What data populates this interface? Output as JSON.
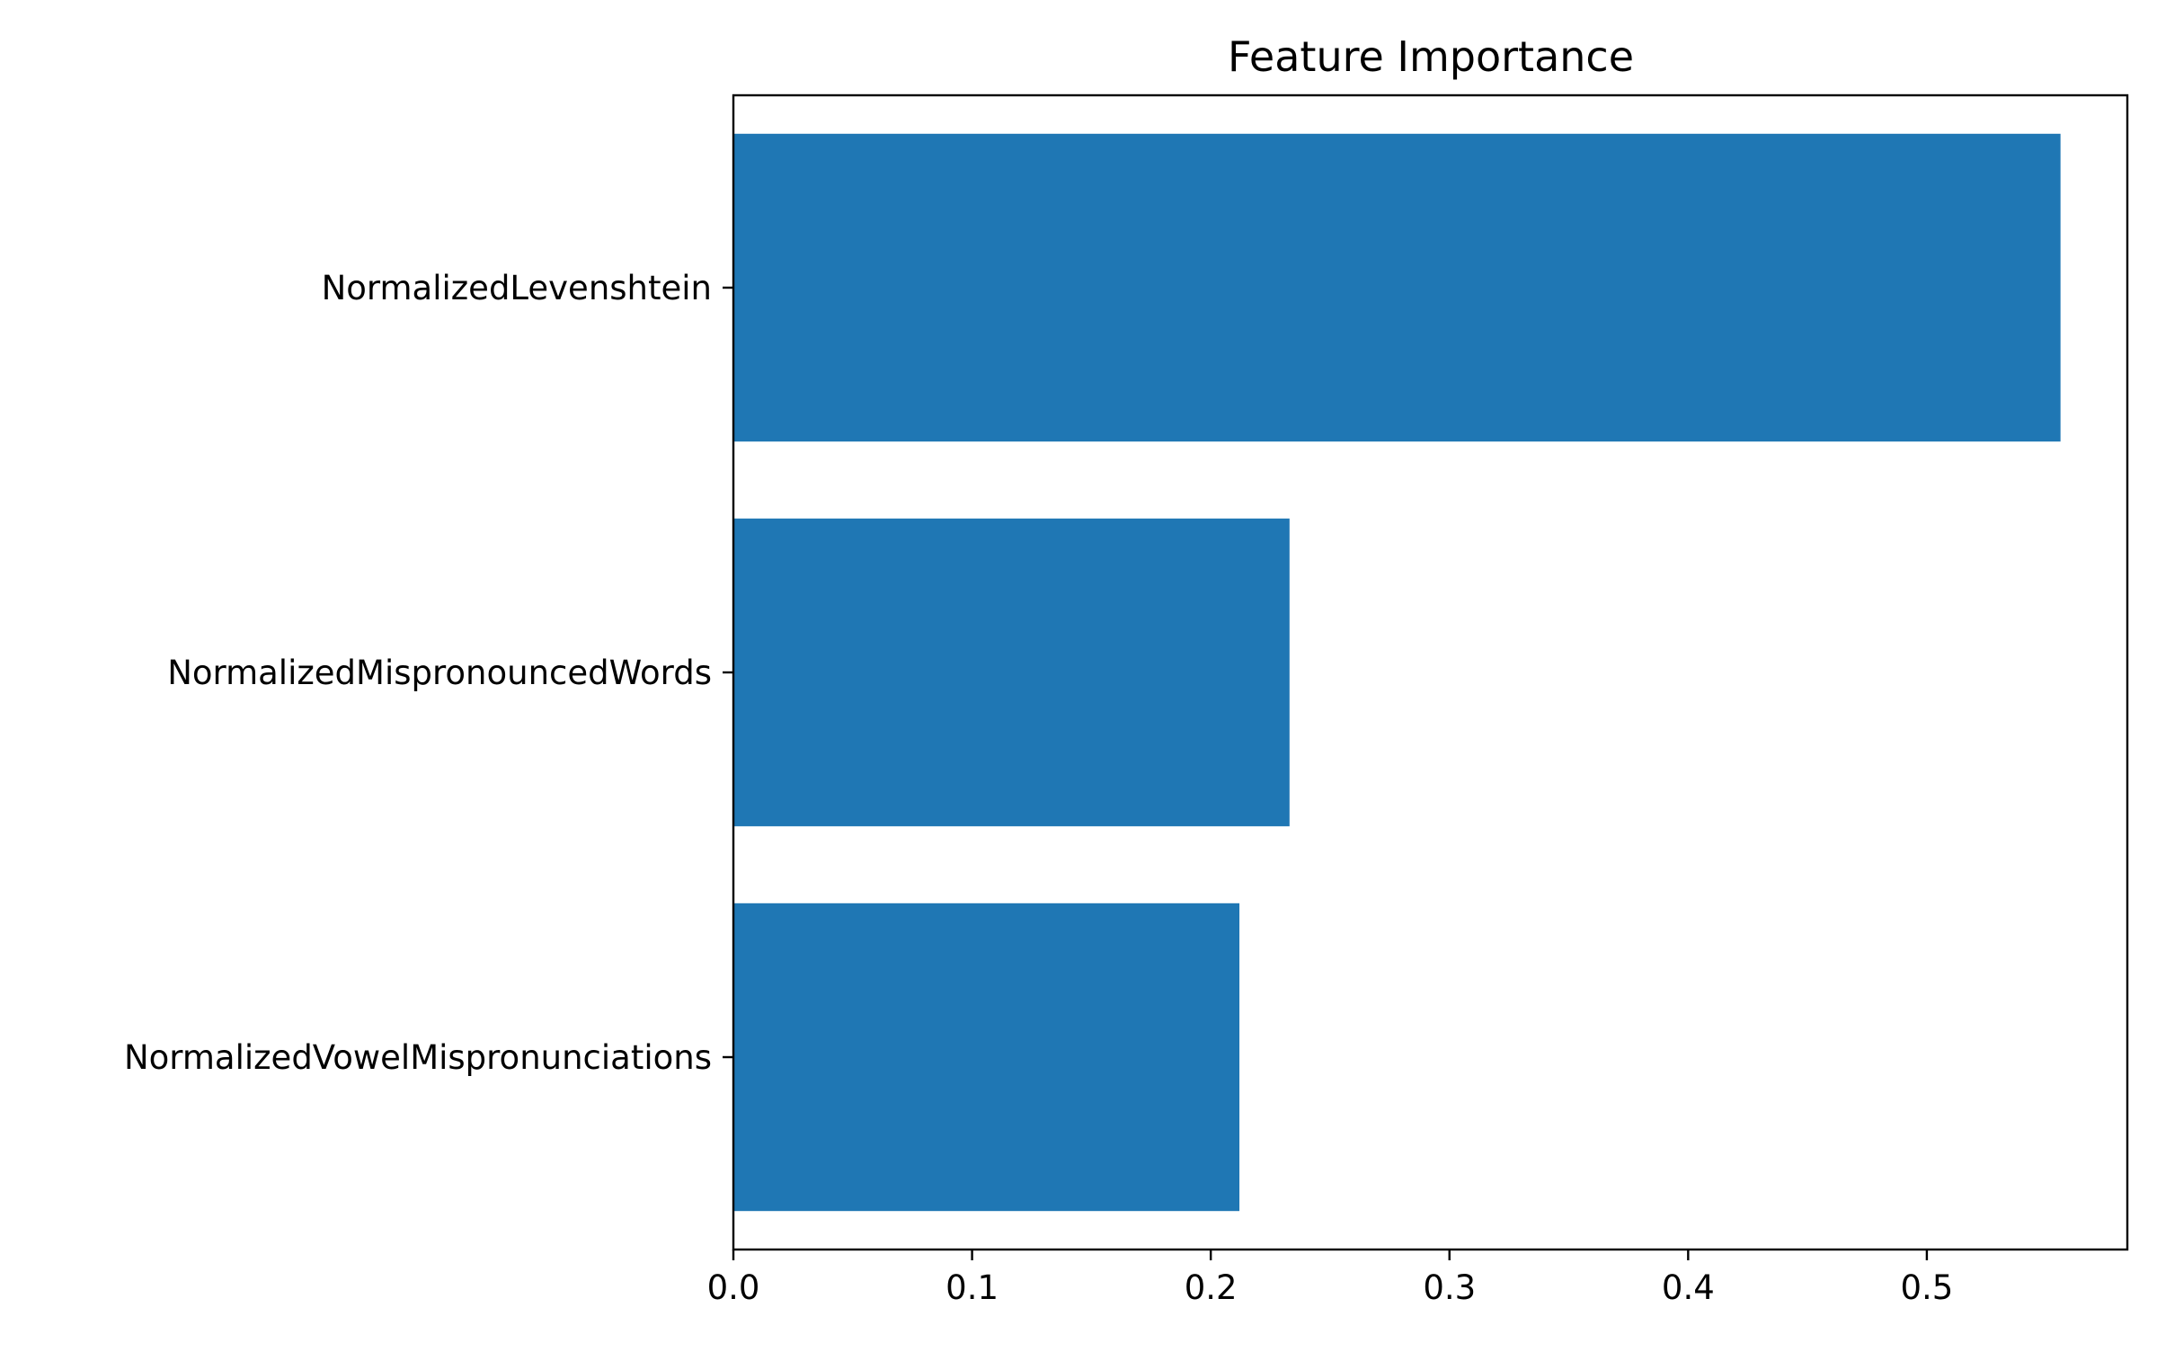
{
  "chart_data": {
    "type": "bar",
    "orientation": "horizontal",
    "title": "Feature Importance",
    "xlabel": "",
    "ylabel": "",
    "categories": [
      "NormalizedLevenshtein",
      "NormalizedMispronouncedWords",
      "NormalizedVowelMispronunciations"
    ],
    "values": [
      0.556,
      0.233,
      0.212
    ],
    "xlim": [
      0,
      0.584
    ],
    "xticks": [
      0.0,
      0.1,
      0.2,
      0.3,
      0.4,
      0.5
    ],
    "xtick_labels": [
      "0.0",
      "0.1",
      "0.2",
      "0.3",
      "0.4",
      "0.5"
    ],
    "grid": false,
    "legend": "none",
    "bar_color": "#1f77b4"
  }
}
